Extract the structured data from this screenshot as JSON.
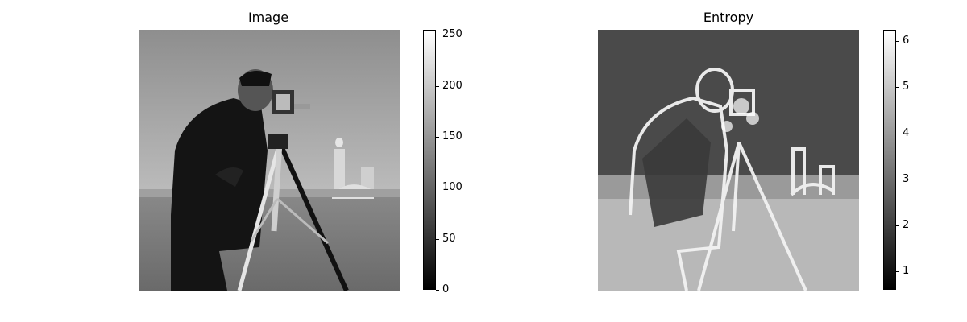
{
  "panels": [
    {
      "title": "Image",
      "colorbar": {
        "min": 0,
        "max": 255,
        "ticks": [
          "0",
          "50",
          "100",
          "150",
          "200",
          "250"
        ],
        "tick_values": [
          0,
          50,
          100,
          150,
          200,
          250
        ],
        "colormap": "gray"
      }
    },
    {
      "title": "Entropy",
      "colorbar": {
        "min": 0.6,
        "max": 6.25,
        "ticks": [
          "1",
          "2",
          "3",
          "4",
          "5",
          "6"
        ],
        "tick_values": [
          1,
          2,
          3,
          4,
          5,
          6
        ],
        "colormap": "gray"
      }
    }
  ]
}
